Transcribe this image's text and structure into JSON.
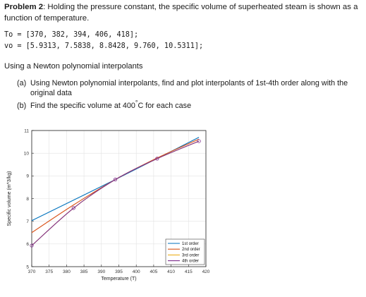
{
  "problem": {
    "label": "Problem 2",
    "statement": ": Holding the pressure constant, the specific volume of superheated steam is shown as a function of temperature."
  },
  "code": {
    "line1": "To = [370, 382, 394, 406, 418];",
    "line2": "vo = [5.9313, 7.5838, 8.8428, 9.760, 10.5311];"
  },
  "subheading": "Using a Newton polynomial interpolants",
  "items": [
    {
      "label": "(a)",
      "text": "Using Newton polynomial interpolants, find and plot interpolants of 1st-4th order along with the original data"
    },
    {
      "label": "(b)",
      "text_before": "Find the specific volume at 400",
      "degree": "°",
      "text_after": "C for each case"
    }
  ],
  "chart_data": {
    "type": "line",
    "xlabel": "Temperature (T)",
    "ylabel": "Specific volume (m^3/kg)",
    "xlim": [
      370,
      420
    ],
    "ylim": [
      5,
      11
    ],
    "xticks": [
      "370",
      "375",
      "380",
      "385",
      "390",
      "395",
      "400",
      "405",
      "410",
      "415",
      "420"
    ],
    "yticks": [
      "5",
      "6",
      "7",
      "8",
      "9",
      "10",
      "11"
    ],
    "grid": true,
    "legend_position": "bottom-right",
    "data_points": {
      "x": [
        370,
        382,
        394,
        406,
        418
      ],
      "y": [
        5.9313,
        7.5838,
        8.8428,
        9.76,
        10.5311
      ],
      "marker": "circle",
      "color": "#7e2f8e"
    },
    "series": [
      {
        "name": "1st order",
        "color": "#0072bd",
        "x": [
          370,
          394,
          418
        ],
        "y": [
          7.03,
          8.84,
          10.7
        ]
      },
      {
        "name": "2nd order",
        "color": "#d95319",
        "x": [
          370,
          382,
          394,
          406,
          418
        ],
        "y": [
          6.5,
          7.72,
          8.84,
          9.79,
          10.62
        ]
      },
      {
        "name": "3rd order",
        "color": "#edb120",
        "x": [
          370,
          382,
          394,
          406,
          418
        ],
        "y": [
          5.93,
          7.58,
          8.84,
          9.76,
          10.53
        ]
      },
      {
        "name": "4th order",
        "color": "#7e2f8e",
        "x": [
          370,
          382,
          394,
          406,
          418
        ],
        "y": [
          5.93,
          7.58,
          8.84,
          9.76,
          10.53
        ]
      }
    ]
  }
}
